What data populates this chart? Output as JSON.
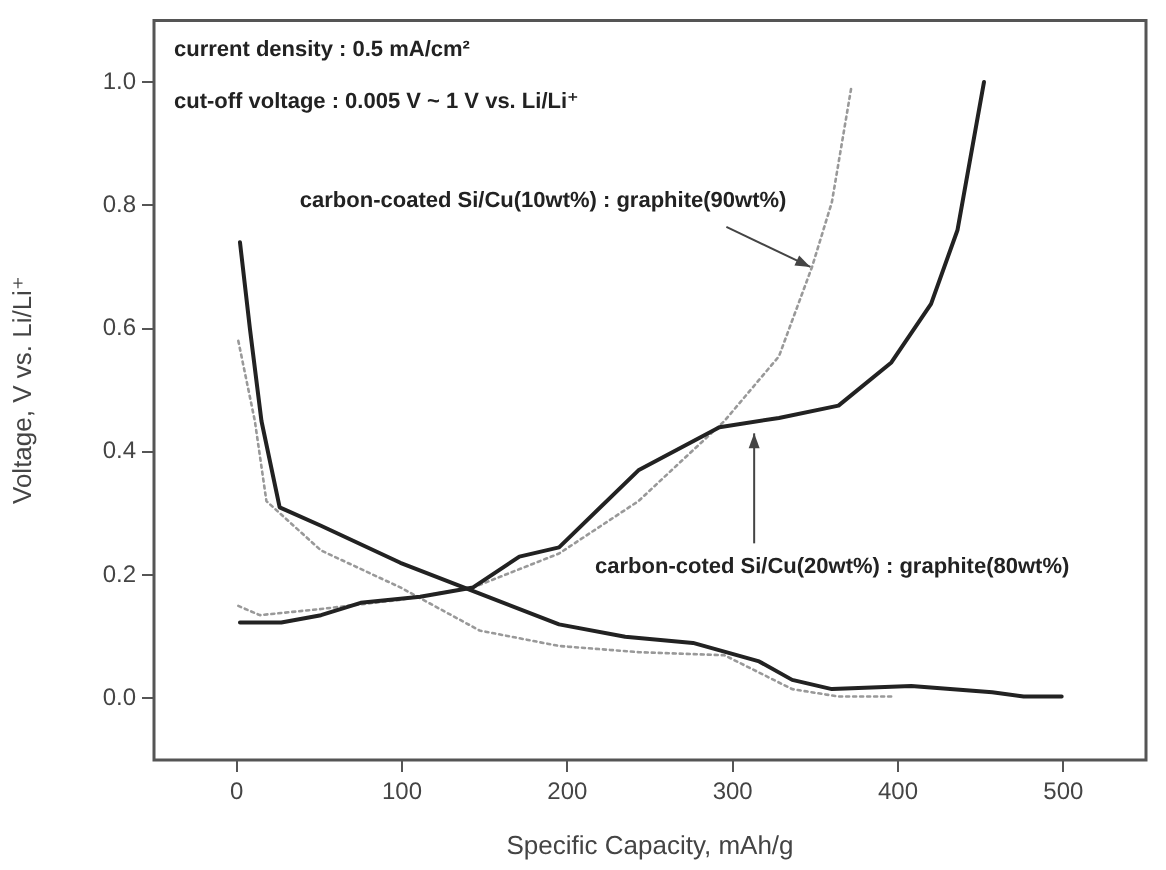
{
  "chart_data": {
    "type": "line",
    "xlabel": "Specific Capacity, mAh/g",
    "ylabel": "Voltage, V vs. Li/Li⁺",
    "xlim": [
      -50,
      550
    ],
    "xticks": [
      0,
      100,
      200,
      300,
      400,
      500
    ],
    "ylim": [
      -0.1,
      1.1
    ],
    "yticks": [
      {
        "value": 0,
        "label": "0.0"
      },
      {
        "value": 0.2,
        "label": "0.2"
      },
      {
        "value": 0.4,
        "label": "0.4"
      },
      {
        "value": 0.6,
        "label": "0.6"
      },
      {
        "value": 0.8,
        "label": "0.8"
      },
      {
        "value": 1,
        "label": "1.0"
      }
    ],
    "grid": false,
    "legend": false,
    "marker": "none",
    "annotations": [
      "current density : 0.5 mA/cm²",
      "cut-off voltage : 0.005 V ~ 1 V vs. Li/Li⁺",
      {
        "text": "carbon-coated Si/Cu(10wt%) : graphite(90wt%)",
        "x": 347,
        "y": 0.7
      },
      {
        "text": "carbon-coted Si/Cu(20wt%) : graphite(80wt%)",
        "x": 313,
        "y": 0.43
      }
    ],
    "series": [
      {
        "color": "#222222",
        "line_style": "solid",
        "x": [
          2,
          8,
          15,
          26,
          51,
          99,
          147,
          195,
          235,
          276,
          316,
          336,
          360,
          408,
          457,
          476,
          499
        ],
        "values": [
          0.74,
          0.6,
          0.45,
          0.31,
          0.28,
          0.22,
          0.17,
          0.12,
          0.1,
          0.09,
          0.06,
          0.03,
          0.015,
          0.02,
          0.01,
          0.003,
          0.003
        ]
      },
      {
        "color": "#222222",
        "line_style": "solid",
        "x": [
          2,
          27,
          51,
          75,
          111,
          143,
          171,
          195,
          243,
          292,
          328,
          364,
          396,
          420,
          436,
          452
        ],
        "values": [
          0.123,
          0.123,
          0.135,
          0.155,
          0.165,
          0.18,
          0.23,
          0.245,
          0.37,
          0.44,
          0.455,
          0.475,
          0.545,
          0.64,
          0.76,
          1.0
        ]
      },
      {
        "color": "#999999",
        "line_style": "dotted",
        "x": [
          1,
          11,
          18,
          51,
          99,
          147,
          195,
          243,
          295,
          336,
          364,
          396
        ],
        "values": [
          0.58,
          0.45,
          0.32,
          0.24,
          0.18,
          0.11,
          0.085,
          0.075,
          0.07,
          0.015,
          0.003,
          0.003
        ]
      },
      {
        "color": "#999999",
        "line_style": "dotted",
        "x": [
          1,
          14,
          51,
          99,
          143,
          195,
          243,
          295,
          328,
          348,
          360,
          372
        ],
        "values": [
          0.15,
          0.135,
          0.145,
          0.16,
          0.18,
          0.235,
          0.32,
          0.45,
          0.555,
          0.7,
          0.805,
          0.995
        ]
      }
    ]
  }
}
